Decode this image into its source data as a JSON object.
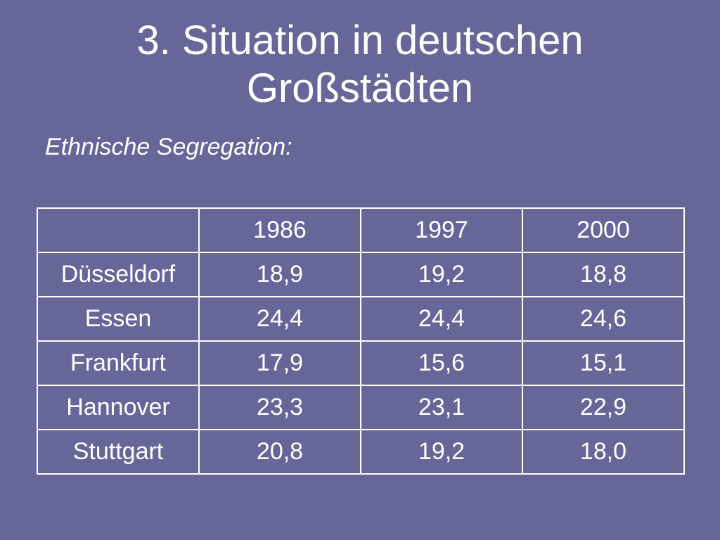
{
  "slide": {
    "title_line1": "3. Situation in deutschen",
    "title_line2": "Großstädten",
    "subtitle": "Ethnische Segregation:"
  },
  "chart_data": {
    "type": "table",
    "columns": [
      "",
      "1986",
      "1997",
      "2000"
    ],
    "rows": [
      {
        "city": "Düsseldorf",
        "values": [
          "18,9",
          "19,2",
          "18,8"
        ]
      },
      {
        "city": "Essen",
        "values": [
          "24,4",
          "24,4",
          "24,6"
        ]
      },
      {
        "city": "Frankfurt",
        "values": [
          "17,9",
          "15,6",
          "15,1"
        ]
      },
      {
        "city": "Hannover",
        "values": [
          "23,3",
          "23,1",
          "22,9"
        ]
      },
      {
        "city": "Stuttgart",
        "values": [
          "20,8",
          "19,2",
          "18,0"
        ]
      }
    ]
  },
  "colors": {
    "background": "#666699",
    "text": "#ffffff",
    "border": "#ffffff"
  }
}
